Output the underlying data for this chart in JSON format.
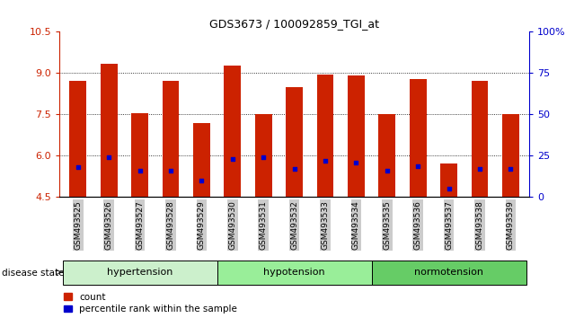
{
  "title": "GDS3673 / 100092859_TGI_at",
  "samples": [
    "GSM493525",
    "GSM493526",
    "GSM493527",
    "GSM493528",
    "GSM493529",
    "GSM493530",
    "GSM493531",
    "GSM493532",
    "GSM493533",
    "GSM493534",
    "GSM493535",
    "GSM493536",
    "GSM493537",
    "GSM493538",
    "GSM493539"
  ],
  "count_values": [
    8.72,
    9.35,
    7.55,
    8.72,
    7.2,
    9.28,
    7.5,
    8.5,
    8.95,
    8.93,
    7.5,
    8.8,
    5.72,
    8.72,
    7.5
  ],
  "percentile_values": [
    18,
    24,
    16,
    16,
    10,
    23,
    24,
    17,
    22,
    21,
    16,
    19,
    5,
    17,
    17
  ],
  "ymin": 4.5,
  "ymax": 10.5,
  "yticks_left": [
    4.5,
    6.0,
    7.5,
    9.0,
    10.5
  ],
  "yticks_right": [
    0,
    25,
    50,
    75,
    100
  ],
  "bar_color": "#cc2200",
  "percentile_color": "#0000cc",
  "bar_width": 0.55,
  "group_bg_colors": [
    "#ccf0cc",
    "#99ee99",
    "#66cc66"
  ],
  "groups": [
    {
      "label": "hypertension",
      "start": 0,
      "end": 5
    },
    {
      "label": "hypotension",
      "start": 5,
      "end": 10
    },
    {
      "label": "normotension",
      "start": 10,
      "end": 15
    }
  ],
  "tick_label_bg": "#cccccc",
  "legend_count_label": "count",
  "legend_percentile_label": "percentile rank within the sample",
  "disease_state_label": "disease state",
  "title_fontsize": 9,
  "left_tick_color": "#cc2200",
  "right_tick_color": "#0000cc"
}
